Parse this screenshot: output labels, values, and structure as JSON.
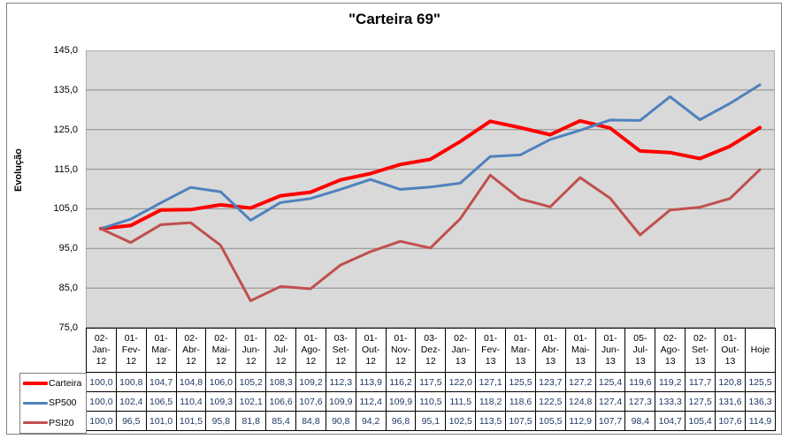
{
  "chart": {
    "colors": {
      "carteira": "#FF0000",
      "sp500": "#4F81BD",
      "psi20": "#C0504D",
      "plot_bg": "#D9D9D9",
      "gridline": "#8C8C8C",
      "plot_border": "#808080",
      "value_text": "#1F3864",
      "frame_border": "#808080"
    }
  },
  "chart_data": {
    "type": "line",
    "title": "\"Carteira 69\"",
    "xlabel": "",
    "ylabel": "Evolução",
    "ylim": [
      75,
      145
    ],
    "grid": true,
    "legend_position": "bottom-left",
    "y_ticks": [
      "145,0",
      "135,0",
      "125,0",
      "115,0",
      "105,0",
      "95,0",
      "85,0",
      "75,0"
    ],
    "categories": [
      "02-Jan-12",
      "01-Fev-12",
      "01-Mar-12",
      "02-Abr-12",
      "02-Mai-12",
      "01-Jun-12",
      "02-Jul-12",
      "01-Ago-12",
      "03-Set-12",
      "01-Out-12",
      "01-Nov-12",
      "03-Dez-12",
      "02-Jan-13",
      "01-Fev-13",
      "01-Mar-13",
      "01-Abr-13",
      "01-Mai-13",
      "01-Jun-13",
      "05-Jul-13",
      "02-Ago-13",
      "02-Set-13",
      "01-Out-13",
      "Hoje"
    ],
    "series": [
      {
        "name": "Carteira",
        "color": "#FF0000",
        "values": [
          100.0,
          100.8,
          104.7,
          104.8,
          106.0,
          105.2,
          108.3,
          109.2,
          112.3,
          113.9,
          116.2,
          117.5,
          122.0,
          127.1,
          125.5,
          123.7,
          127.2,
          125.4,
          119.6,
          119.2,
          117.7,
          120.8,
          125.5
        ]
      },
      {
        "name": "SP500",
        "color": "#4F81BD",
        "values": [
          100.0,
          102.4,
          106.5,
          110.4,
          109.3,
          102.1,
          106.6,
          107.6,
          109.9,
          112.4,
          109.9,
          110.5,
          111.5,
          118.2,
          118.6,
          122.5,
          124.8,
          127.4,
          127.3,
          133.3,
          127.5,
          131.6,
          136.3
        ]
      },
      {
        "name": "PSI20",
        "color": "#C0504D",
        "values": [
          100.0,
          96.5,
          101.0,
          101.5,
          95.8,
          81.8,
          85.4,
          84.8,
          90.8,
          94.2,
          96.8,
          95.1,
          102.5,
          113.5,
          107.5,
          105.5,
          112.9,
          107.7,
          98.4,
          104.7,
          105.4,
          107.6,
          114.9
        ]
      }
    ]
  }
}
